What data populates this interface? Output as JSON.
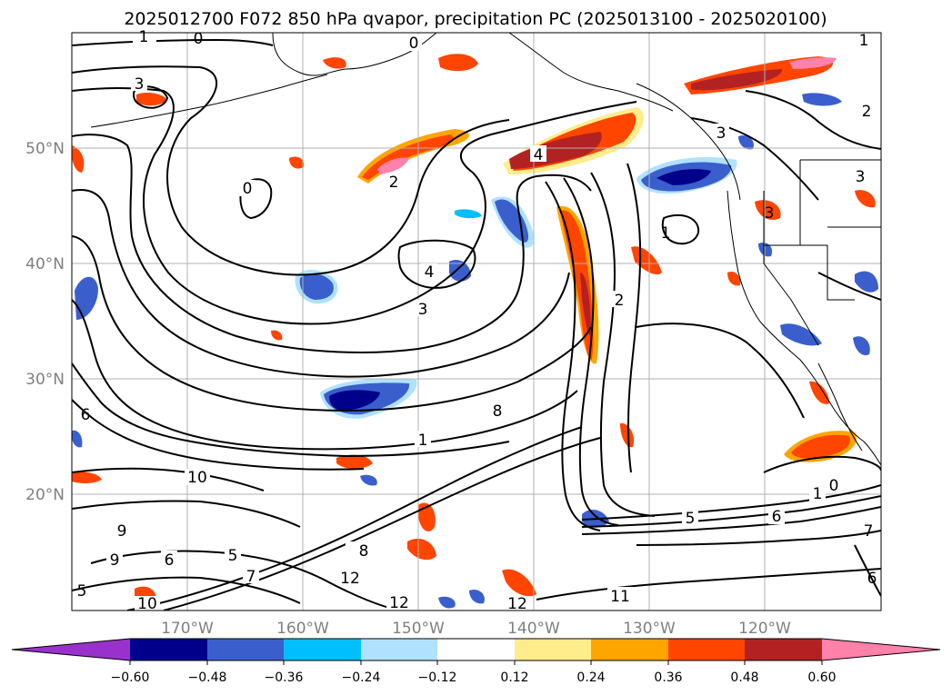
{
  "title": "2025012700 F072 850 hPa qvapor, precipitation PC (2025013100 - 2025020100)",
  "map": {
    "lon_labels": [
      "170°W",
      "160°W",
      "150°W",
      "140°W",
      "130°W",
      "120°W"
    ],
    "lat_labels": [
      "50°N",
      "40°N",
      "30°N",
      "20°N"
    ],
    "contour_labels": [
      "1",
      "0",
      "3",
      "0",
      "2",
      "4",
      "4",
      "3",
      "2",
      "1",
      "8",
      "10",
      "6",
      "9",
      "9",
      "6",
      "5",
      "7",
      "8",
      "5",
      "10",
      "12",
      "12",
      "12",
      "11",
      "1",
      "0",
      "5",
      "6",
      "7",
      "6",
      "1",
      "3",
      "2",
      "3",
      "3",
      "0",
      "1"
    ],
    "colors": {
      "coastline": "#000000",
      "gridlines": "#b0b0b0",
      "contour": "#000000"
    }
  },
  "colorbar": {
    "tick_labels": [
      "−0.60",
      "−0.48",
      "−0.36",
      "−0.24",
      "−0.12",
      "0.12",
      "0.24",
      "0.36",
      "0.48",
      "0.60"
    ],
    "bins": [
      "#9932cc",
      "#00008b",
      "#3a5fcd",
      "#00bfff",
      "#b0e2ff",
      "#ffffff",
      "#ffec8b",
      "#ffa500",
      "#ff4500",
      "#b22222",
      "#ff82ab"
    ]
  }
}
